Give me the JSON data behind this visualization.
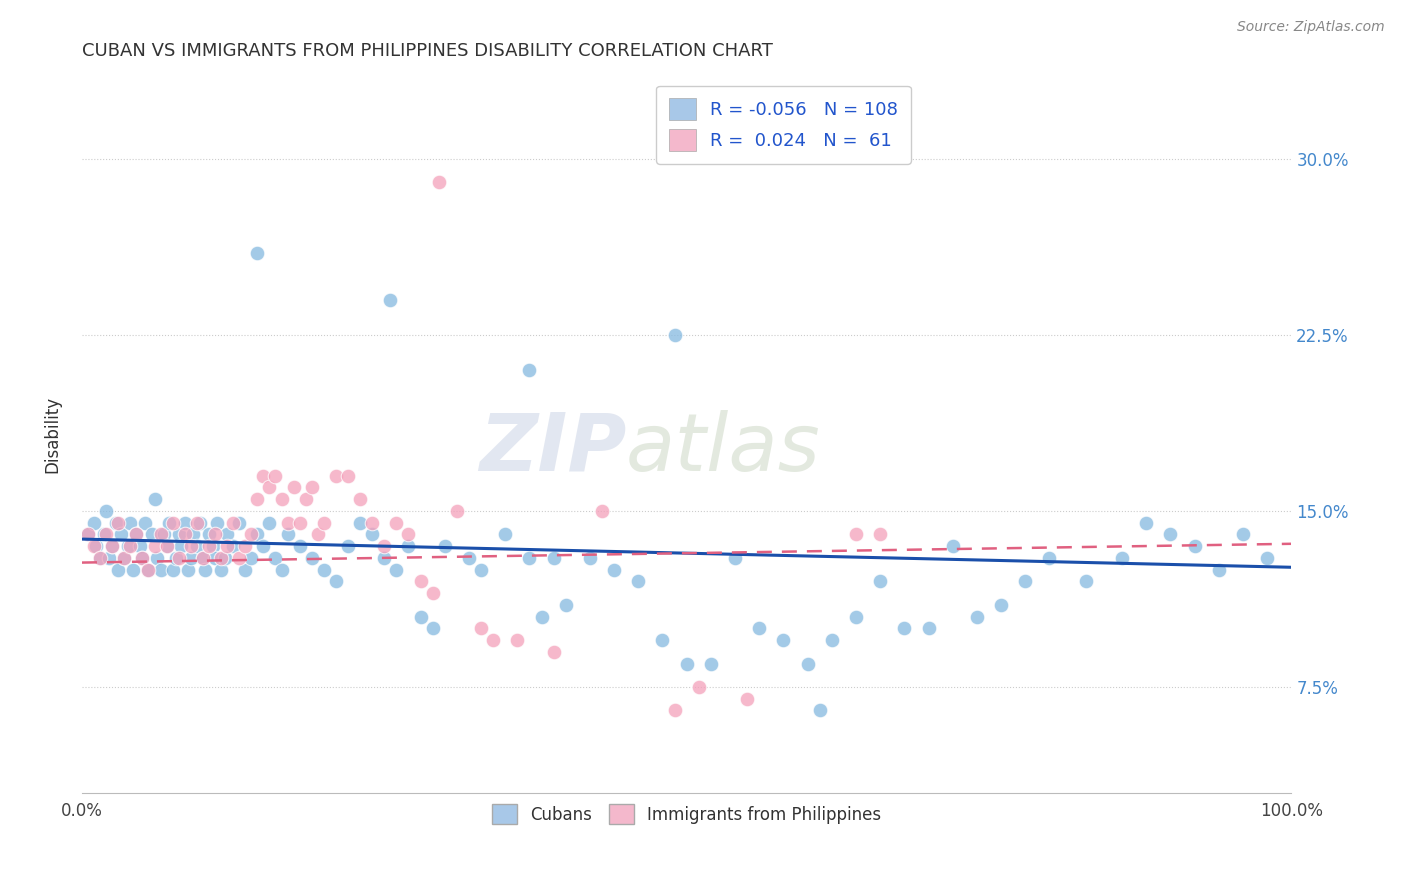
{
  "title": "CUBAN VS IMMIGRANTS FROM PHILIPPINES DISABILITY CORRELATION CHART",
  "source": "Source: ZipAtlas.com",
  "ylabel": "Disability",
  "ytick_labels": [
    "7.5%",
    "15.0%",
    "22.5%",
    "30.0%"
  ],
  "ytick_values": [
    0.075,
    0.15,
    0.225,
    0.3
  ],
  "xlim": [
    0.0,
    1.0
  ],
  "ylim": [
    0.03,
    0.335
  ],
  "legend_labels_bottom": [
    "Cubans",
    "Immigrants from Philippines"
  ],
  "blue_color": "#85b9e0",
  "pink_color": "#f4a0ba",
  "trend_blue": "#1a4faa",
  "trend_pink": "#e06080",
  "watermark": "ZIPatlas",
  "blue_trend_start": 0.138,
  "blue_trend_end": 0.126,
  "pink_trend_start": 0.128,
  "pink_trend_end": 0.136,
  "cubans_x": [
    0.005,
    0.01,
    0.012,
    0.015,
    0.018,
    0.02,
    0.022,
    0.025,
    0.028,
    0.03,
    0.032,
    0.035,
    0.038,
    0.04,
    0.042,
    0.045,
    0.048,
    0.05,
    0.052,
    0.055,
    0.058,
    0.06,
    0.062,
    0.065,
    0.068,
    0.07,
    0.072,
    0.075,
    0.078,
    0.08,
    0.082,
    0.085,
    0.088,
    0.09,
    0.092,
    0.095,
    0.098,
    0.1,
    0.102,
    0.105,
    0.108,
    0.11,
    0.112,
    0.115,
    0.118,
    0.12,
    0.125,
    0.13,
    0.135,
    0.14,
    0.145,
    0.15,
    0.155,
    0.16,
    0.165,
    0.17,
    0.18,
    0.19,
    0.2,
    0.21,
    0.22,
    0.23,
    0.24,
    0.25,
    0.26,
    0.27,
    0.28,
    0.29,
    0.3,
    0.32,
    0.33,
    0.35,
    0.37,
    0.38,
    0.39,
    0.4,
    0.42,
    0.44,
    0.46,
    0.48,
    0.5,
    0.52,
    0.54,
    0.56,
    0.58,
    0.6,
    0.62,
    0.64,
    0.66,
    0.68,
    0.7,
    0.72,
    0.74,
    0.76,
    0.78,
    0.8,
    0.83,
    0.86,
    0.88,
    0.9,
    0.92,
    0.94,
    0.96,
    0.98,
    0.145,
    0.255,
    0.37,
    0.49,
    0.61
  ],
  "cubans_y": [
    0.14,
    0.145,
    0.135,
    0.13,
    0.14,
    0.15,
    0.13,
    0.135,
    0.145,
    0.125,
    0.14,
    0.13,
    0.135,
    0.145,
    0.125,
    0.14,
    0.135,
    0.13,
    0.145,
    0.125,
    0.14,
    0.155,
    0.13,
    0.125,
    0.14,
    0.135,
    0.145,
    0.125,
    0.13,
    0.14,
    0.135,
    0.145,
    0.125,
    0.13,
    0.14,
    0.135,
    0.145,
    0.13,
    0.125,
    0.14,
    0.135,
    0.13,
    0.145,
    0.125,
    0.13,
    0.14,
    0.135,
    0.145,
    0.125,
    0.13,
    0.14,
    0.135,
    0.145,
    0.13,
    0.125,
    0.14,
    0.135,
    0.13,
    0.125,
    0.12,
    0.135,
    0.145,
    0.14,
    0.13,
    0.125,
    0.135,
    0.105,
    0.1,
    0.135,
    0.13,
    0.125,
    0.14,
    0.13,
    0.105,
    0.13,
    0.11,
    0.13,
    0.125,
    0.12,
    0.095,
    0.085,
    0.085,
    0.13,
    0.1,
    0.095,
    0.085,
    0.095,
    0.105,
    0.12,
    0.1,
    0.1,
    0.135,
    0.105,
    0.11,
    0.12,
    0.13,
    0.12,
    0.13,
    0.145,
    0.14,
    0.135,
    0.125,
    0.14,
    0.13,
    0.26,
    0.24,
    0.21,
    0.225,
    0.065
  ],
  "philippines_x": [
    0.005,
    0.01,
    0.015,
    0.02,
    0.025,
    0.03,
    0.035,
    0.04,
    0.045,
    0.05,
    0.055,
    0.06,
    0.065,
    0.07,
    0.075,
    0.08,
    0.085,
    0.09,
    0.095,
    0.1,
    0.105,
    0.11,
    0.115,
    0.12,
    0.125,
    0.13,
    0.135,
    0.14,
    0.145,
    0.15,
    0.155,
    0.16,
    0.165,
    0.17,
    0.175,
    0.18,
    0.185,
    0.19,
    0.195,
    0.2,
    0.21,
    0.22,
    0.23,
    0.24,
    0.25,
    0.26,
    0.27,
    0.28,
    0.29,
    0.31,
    0.33,
    0.34,
    0.36,
    0.39,
    0.43,
    0.49,
    0.51,
    0.55,
    0.64,
    0.66,
    0.295
  ],
  "philippines_y": [
    0.14,
    0.135,
    0.13,
    0.14,
    0.135,
    0.145,
    0.13,
    0.135,
    0.14,
    0.13,
    0.125,
    0.135,
    0.14,
    0.135,
    0.145,
    0.13,
    0.14,
    0.135,
    0.145,
    0.13,
    0.135,
    0.14,
    0.13,
    0.135,
    0.145,
    0.13,
    0.135,
    0.14,
    0.155,
    0.165,
    0.16,
    0.165,
    0.155,
    0.145,
    0.16,
    0.145,
    0.155,
    0.16,
    0.14,
    0.145,
    0.165,
    0.165,
    0.155,
    0.145,
    0.135,
    0.145,
    0.14,
    0.12,
    0.115,
    0.15,
    0.1,
    0.095,
    0.095,
    0.09,
    0.15,
    0.065,
    0.075,
    0.07,
    0.14,
    0.14,
    0.29
  ]
}
